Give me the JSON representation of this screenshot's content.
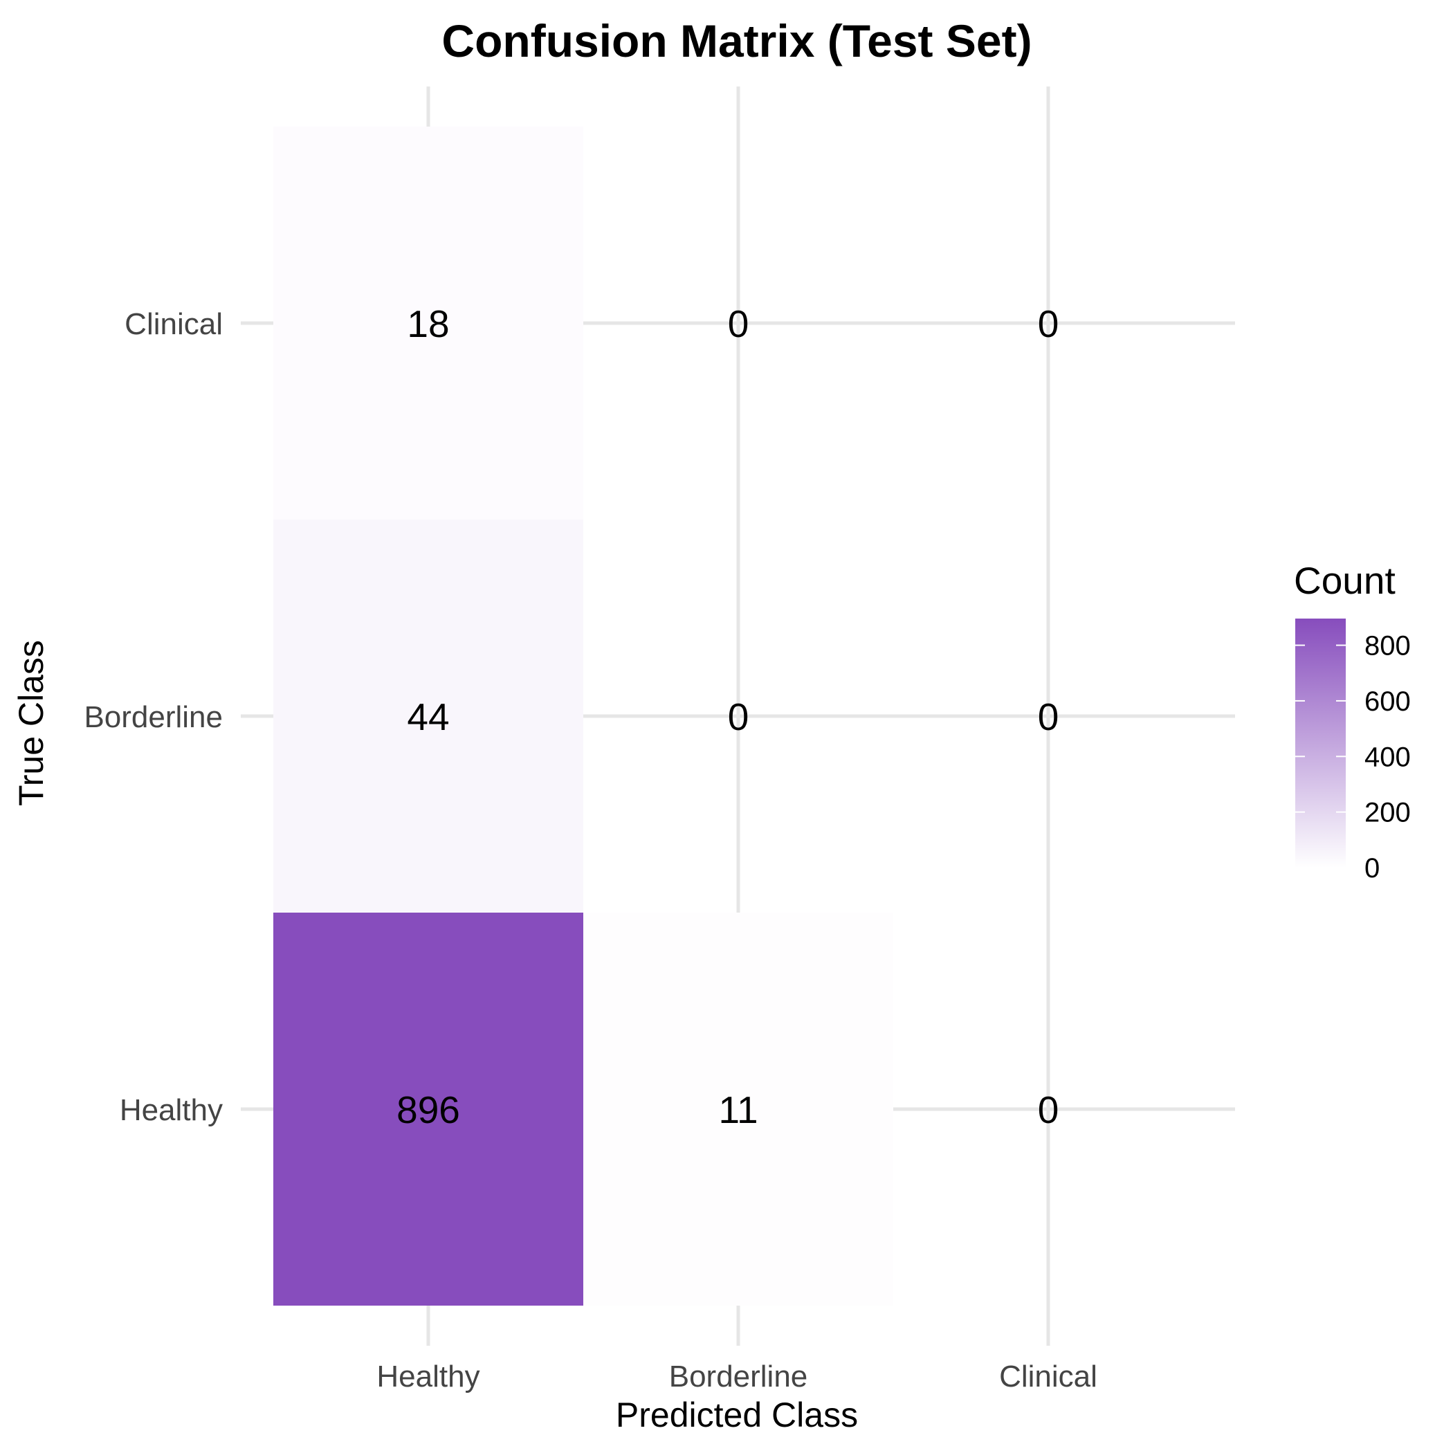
{
  "chart_data": {
    "type": "heatmap",
    "title": "Confusion Matrix (Test Set)",
    "xlabel": "Predicted Class",
    "ylabel": "True Class",
    "x_categories": [
      "Healthy",
      "Borderline",
      "Clinical"
    ],
    "y_categories": [
      "Healthy",
      "Borderline",
      "Clinical"
    ],
    "cells": [
      {
        "true": "Clinical",
        "predicted": "Healthy",
        "value": 18
      },
      {
        "true": "Clinical",
        "predicted": "Borderline",
        "value": 0
      },
      {
        "true": "Clinical",
        "predicted": "Clinical",
        "value": 0
      },
      {
        "true": "Borderline",
        "predicted": "Healthy",
        "value": 44
      },
      {
        "true": "Borderline",
        "predicted": "Borderline",
        "value": 0
      },
      {
        "true": "Borderline",
        "predicted": "Clinical",
        "value": 0
      },
      {
        "true": "Healthy",
        "predicted": "Healthy",
        "value": 896
      },
      {
        "true": "Healthy",
        "predicted": "Borderline",
        "value": 11
      },
      {
        "true": "Healthy",
        "predicted": "Clinical",
        "value": 0
      }
    ],
    "legend": {
      "title": "Count",
      "placement": "right",
      "ticks": [
        0,
        200,
        400,
        600,
        800
      ],
      "range": [
        0,
        896
      ],
      "color_low": "#ffffff",
      "color_high": "#874dbd"
    },
    "grid": true
  }
}
